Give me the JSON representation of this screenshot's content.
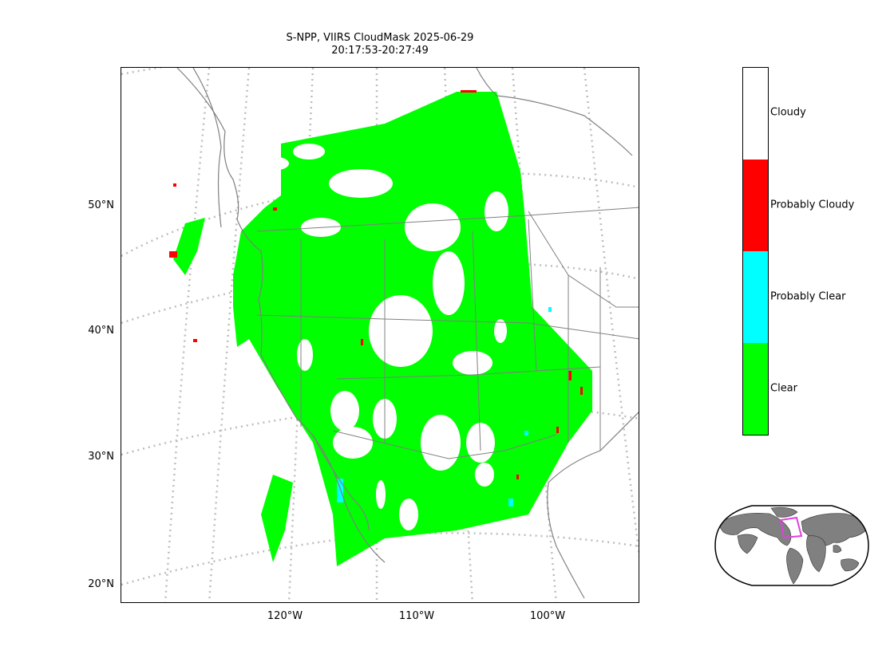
{
  "title": {
    "line1": "S-NPP, VIIRS CloudMask 2025-06-29",
    "line2": "20:17:53-20:27:49"
  },
  "map": {
    "lat_labels": [
      "50°N",
      "40°N",
      "30°N",
      "20°N"
    ],
    "lon_labels": [
      "120°W",
      "110°W",
      "100°W"
    ],
    "graticule_style": "dotted light gray",
    "coastline_color": "#808080"
  },
  "colorbar": {
    "categories": [
      {
        "label": "Cloudy",
        "color": "#ffffff"
      },
      {
        "label": "Probably Cloudy",
        "color": "#ff0000"
      },
      {
        "label": "Probably Clear",
        "color": "#00ffff"
      },
      {
        "label": "Clear",
        "color": "#00ff00"
      }
    ]
  },
  "inset": {
    "description_type": "globe locator",
    "land_color": "#808080",
    "box_color": "#e040e0"
  }
}
